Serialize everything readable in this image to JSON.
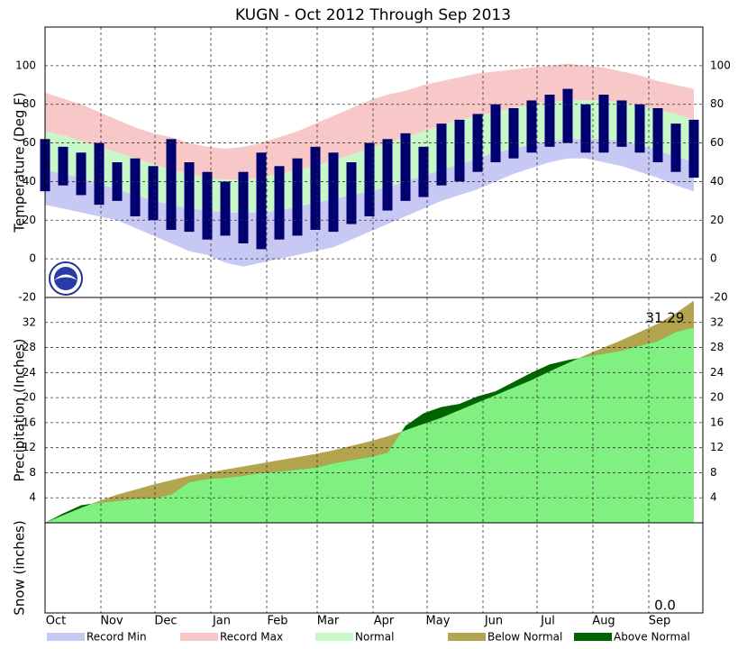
{
  "title": "KUGN - Oct 2012 Through Sep 2013",
  "chart_data": [
    {
      "type": "range",
      "ylabel": "Temperature (Deg F)",
      "ylim": [
        -20,
        120
      ],
      "yticks": [
        -20,
        0,
        20,
        40,
        60,
        80,
        100
      ],
      "x": [
        0,
        10,
        20,
        30,
        40,
        50,
        60,
        70,
        80,
        90,
        100,
        110,
        120,
        130,
        140,
        150,
        160,
        170,
        180,
        190,
        200,
        210,
        220,
        230,
        240,
        250,
        260,
        270,
        280,
        290,
        300,
        310,
        320,
        330,
        340,
        350,
        360
      ],
      "series": [
        {
          "name": "Record Min",
          "color": "#c8c8f5",
          "values": [
            28,
            26,
            24,
            22,
            20,
            16,
            12,
            8,
            4,
            2,
            -2,
            -4,
            -2,
            0,
            2,
            4,
            6,
            10,
            14,
            18,
            22,
            26,
            30,
            33,
            36,
            40,
            44,
            47,
            50,
            52,
            52,
            50,
            48,
            45,
            42,
            38,
            35
          ]
        },
        {
          "name": "Record Max",
          "color": "#f8c8c8",
          "values": [
            86,
            83,
            80,
            76,
            72,
            68,
            65,
            63,
            60,
            58,
            57,
            58,
            60,
            63,
            66,
            70,
            74,
            78,
            82,
            85,
            87,
            90,
            92,
            94,
            96,
            97,
            98,
            99,
            100,
            101,
            100,
            99,
            97,
            95,
            92,
            90,
            88
          ]
        },
        {
          "name": "Normal",
          "color": "#c8f8c8",
          "low": [
            46,
            44,
            42,
            39,
            36,
            33,
            30,
            28,
            26,
            25,
            24,
            24,
            24,
            25,
            27,
            29,
            31,
            33,
            35,
            37,
            40,
            43,
            46,
            49,
            52,
            55,
            57,
            59,
            61,
            62,
            62,
            62,
            61,
            59,
            56,
            53,
            50
          ],
          "high": [
            66,
            64,
            61,
            58,
            55,
            52,
            49,
            46,
            44,
            42,
            41,
            41,
            42,
            44,
            46,
            48,
            51,
            54,
            57,
            60,
            63,
            66,
            69,
            72,
            74,
            76,
            78,
            80,
            81,
            82,
            82,
            82,
            81,
            79,
            77,
            75,
            72
          ]
        }
      ],
      "observed": {
        "color": "#000070",
        "low": [
          35,
          38,
          33,
          28,
          30,
          22,
          20,
          15,
          14,
          10,
          12,
          8,
          5,
          10,
          12,
          15,
          14,
          18,
          22,
          25,
          30,
          32,
          38,
          40,
          45,
          50,
          52,
          55,
          58,
          60,
          55,
          55,
          58,
          55,
          50,
          45,
          42
        ],
        "high": [
          62,
          58,
          55,
          60,
          50,
          52,
          48,
          62,
          50,
          45,
          40,
          45,
          55,
          48,
          52,
          58,
          55,
          50,
          60,
          62,
          65,
          58,
          70,
          72,
          75,
          80,
          78,
          82,
          85,
          88,
          80,
          85,
          82,
          80,
          78,
          70,
          72
        ]
      }
    },
    {
      "type": "area",
      "ylabel": "Precipitation (Inches)",
      "ylim": [
        0,
        36
      ],
      "yticks": [
        4,
        8,
        12,
        16,
        20,
        24,
        28,
        32
      ],
      "x": [
        0,
        10,
        20,
        30,
        40,
        50,
        60,
        70,
        80,
        90,
        100,
        110,
        120,
        130,
        140,
        150,
        160,
        170,
        180,
        190,
        200,
        210,
        220,
        230,
        240,
        250,
        260,
        270,
        280,
        290,
        300,
        310,
        320,
        330,
        340,
        350,
        360
      ],
      "values": [
        0,
        1.5,
        2.8,
        3.2,
        3.5,
        3.8,
        3.9,
        4.5,
        6.5,
        7.0,
        7.2,
        7.5,
        8.0,
        8.2,
        8.5,
        8.8,
        9.5,
        10.0,
        10.5,
        11.2,
        15.5,
        17.5,
        18.5,
        19.0,
        20.2,
        21.0,
        22.5,
        24.0,
        25.3,
        26.0,
        26.5,
        27.0,
        27.5,
        28.3,
        29.0,
        30.5,
        31.2
      ],
      "color": "#80f080",
      "normal": [
        0,
        1.2,
        2.4,
        3.5,
        4.5,
        5.3,
        6.1,
        6.8,
        7.5,
        8.0,
        8.5,
        9.0,
        9.5,
        10.0,
        10.5,
        11.0,
        11.6,
        12.3,
        13.0,
        13.8,
        14.8,
        15.8,
        16.8,
        18.0,
        19.2,
        20.4,
        21.6,
        22.8,
        24.2,
        25.5,
        26.8,
        28.0,
        29.2,
        30.5,
        31.8,
        33.5,
        35.5
      ],
      "legend": [
        {
          "name": "Below Normal",
          "color": "#b3a54f"
        },
        {
          "name": "Above Normal",
          "color": "#006400"
        }
      ],
      "annotation": "31.29"
    },
    {
      "type": "area",
      "ylabel": "Snow (inches)",
      "annotation": "0.0",
      "xlim": [
        0,
        365
      ],
      "xticks": [
        {
          "value": 0,
          "label": "Oct"
        },
        {
          "value": 31,
          "label": "Nov"
        },
        {
          "value": 61,
          "label": "Dec"
        },
        {
          "value": 92,
          "label": "Jan"
        },
        {
          "value": 123,
          "label": "Feb"
        },
        {
          "value": 151,
          "label": "Mar"
        },
        {
          "value": 182,
          "label": "Apr"
        },
        {
          "value": 212,
          "label": "May"
        },
        {
          "value": 243,
          "label": "Jun"
        },
        {
          "value": 273,
          "label": "Jul"
        },
        {
          "value": 304,
          "label": "Aug"
        },
        {
          "value": 335,
          "label": "Sep"
        }
      ]
    }
  ]
}
